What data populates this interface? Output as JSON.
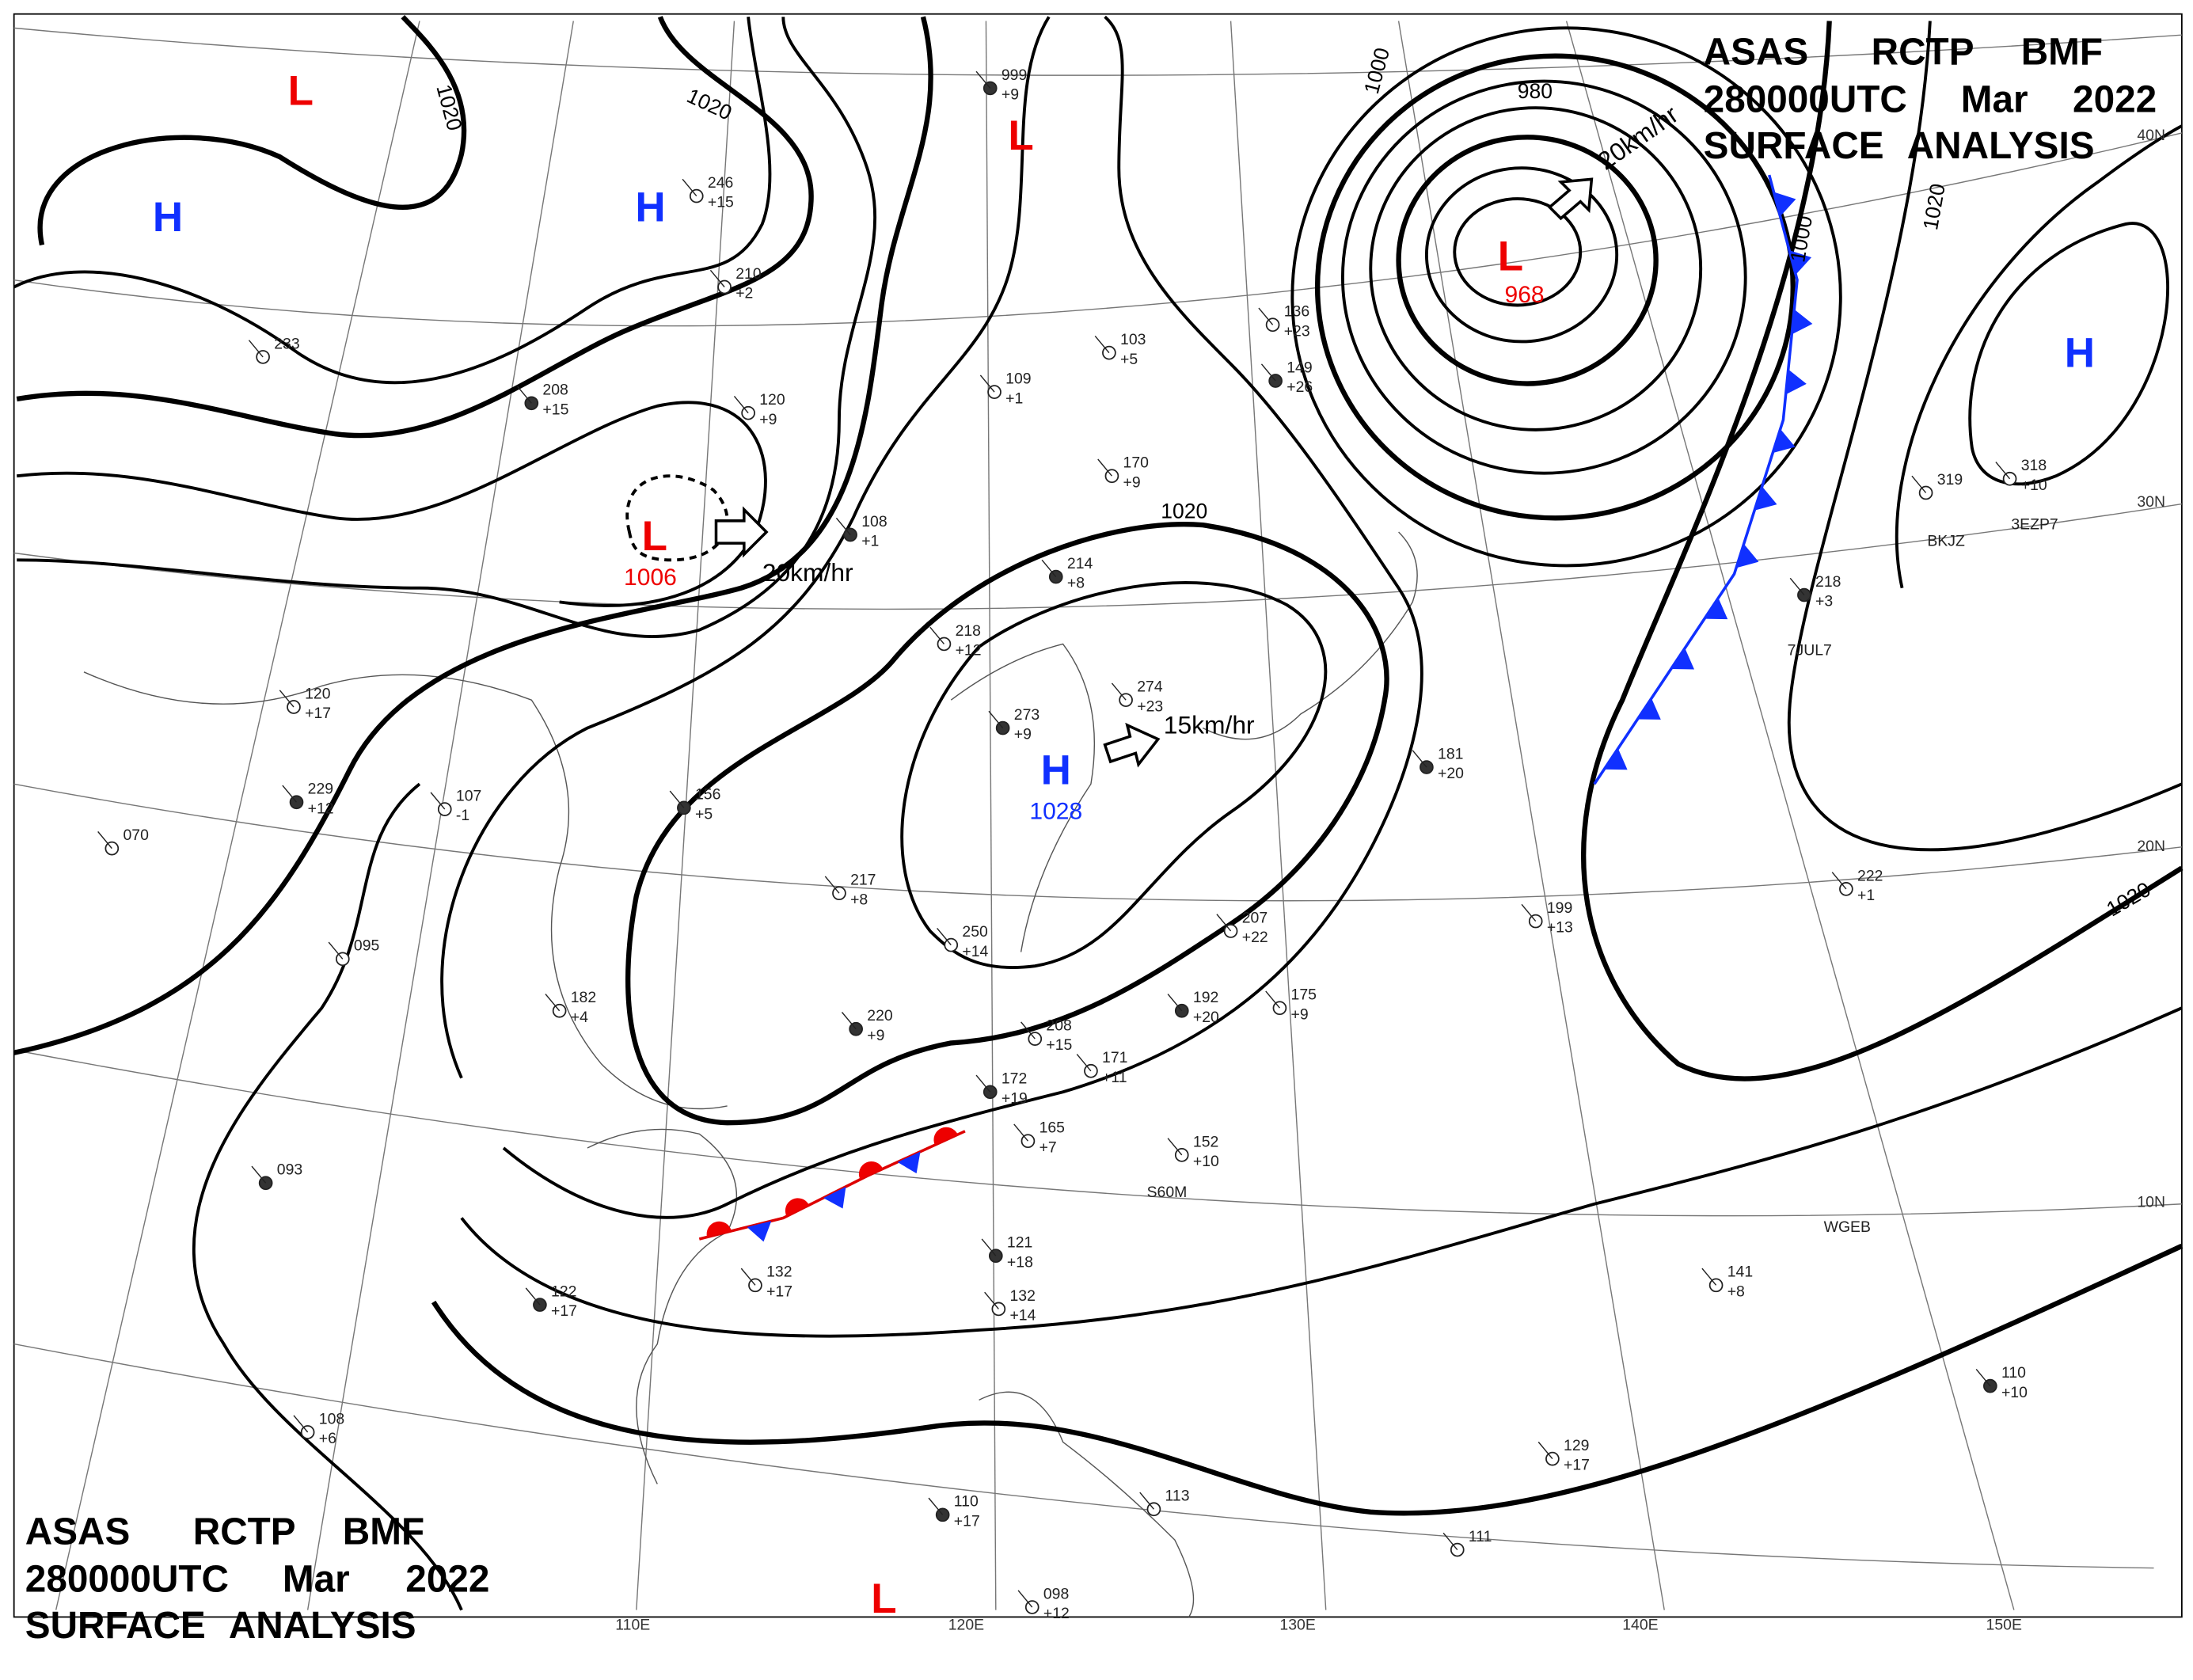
{
  "header_top": {
    "line1": [
      "ASAS",
      "RCTP",
      "BMF"
    ],
    "line2": [
      "280000UTC",
      "Mar",
      "2022"
    ],
    "line3": "SURFACE ANALYSIS"
  },
  "header_bottom": {
    "line1": [
      "ASAS",
      "RCTP",
      "BMF"
    ],
    "line2": [
      "280000UTC",
      "Mar",
      "2022"
    ],
    "line3": "SURFACE ANALYSIS"
  },
  "highs": [
    {
      "label": "H"
    },
    {
      "label": "H"
    },
    {
      "label": "H",
      "pressure": "1028"
    },
    {
      "label": "H"
    }
  ],
  "lows": [
    {
      "label": "L"
    },
    {
      "label": "L"
    },
    {
      "label": "L",
      "pressure": "1006"
    },
    {
      "label": "L",
      "pressure": "968"
    },
    {
      "label": "L"
    }
  ],
  "isobar_labels": [
    "1020",
    "1020",
    "1020",
    "1020",
    "1020",
    "1000",
    "1000",
    "980"
  ],
  "motion_labels": [
    "20km/hr",
    "20km/hr",
    "15km/hr"
  ],
  "latitudes": [
    "40N",
    "30N",
    "20N",
    "10N"
  ],
  "longitudes": [
    "110E",
    "120E",
    "130E",
    "140E",
    "150E"
  ],
  "ship_codes": [
    "BKJZ",
    "3EZP7",
    "7JUL7",
    "WGEB",
    "S60M"
  ],
  "stations": [
    {
      "p": "999",
      "t": "+9"
    },
    {
      "p": "246",
      "t": "+15"
    },
    {
      "p": "210",
      "t": "+2"
    },
    {
      "p": "108",
      "t": "+1"
    },
    {
      "p": "109",
      "t": "+1"
    },
    {
      "p": "103",
      "t": "+5"
    },
    {
      "p": "149",
      "t": "+26"
    },
    {
      "p": "136",
      "t": "+23"
    },
    {
      "p": "170",
      "t": "+9"
    },
    {
      "p": "214",
      "t": "+8"
    },
    {
      "p": "218",
      "t": "+12"
    },
    {
      "p": "274",
      "t": "+23"
    },
    {
      "p": "273",
      "t": "+9"
    },
    {
      "p": "250",
      "t": "+14"
    },
    {
      "p": "217",
      "t": "+8"
    },
    {
      "p": "156",
      "t": "+5"
    },
    {
      "p": "107",
      "t": "-1"
    },
    {
      "p": "120",
      "t": "+17"
    },
    {
      "p": "229",
      "t": "+12"
    },
    {
      "p": "095"
    },
    {
      "p": "182",
      "t": "+4"
    },
    {
      "p": "220",
      "t": "+9"
    },
    {
      "p": "208",
      "t": "+15"
    },
    {
      "p": "171",
      "t": "+11"
    },
    {
      "p": "172",
      "t": "+19"
    },
    {
      "p": "165",
      "t": "+7"
    },
    {
      "p": "152",
      "t": "+10"
    },
    {
      "p": "192",
      "t": "+20"
    },
    {
      "p": "207",
      "t": "+22"
    },
    {
      "p": "175",
      "t": "+9"
    },
    {
      "p": "181",
      "t": "+20"
    },
    {
      "p": "199",
      "t": "+13"
    },
    {
      "p": "141",
      "t": "+8"
    },
    {
      "p": "122",
      "t": "+17"
    },
    {
      "p": "108",
      "t": "+6"
    },
    {
      "p": "132",
      "t": "+17"
    },
    {
      "p": "121",
      "t": "+18"
    },
    {
      "p": "132",
      "t": "+14"
    },
    {
      "p": "113"
    },
    {
      "p": "110",
      "t": "+17"
    },
    {
      "p": "098",
      "t": "+12"
    },
    {
      "p": "129",
      "t": "+17"
    },
    {
      "p": "110",
      "t": "+10"
    },
    {
      "p": "318",
      "t": "+10"
    },
    {
      "p": "319"
    },
    {
      "p": "218",
      "t": "+3"
    },
    {
      "p": "222",
      "t": "+1"
    },
    {
      "p": "111"
    },
    {
      "p": "093"
    },
    {
      "p": "070"
    },
    {
      "p": "233"
    },
    {
      "p": "208",
      "t": "+15"
    },
    {
      "p": "120",
      "t": "+9"
    }
  ]
}
